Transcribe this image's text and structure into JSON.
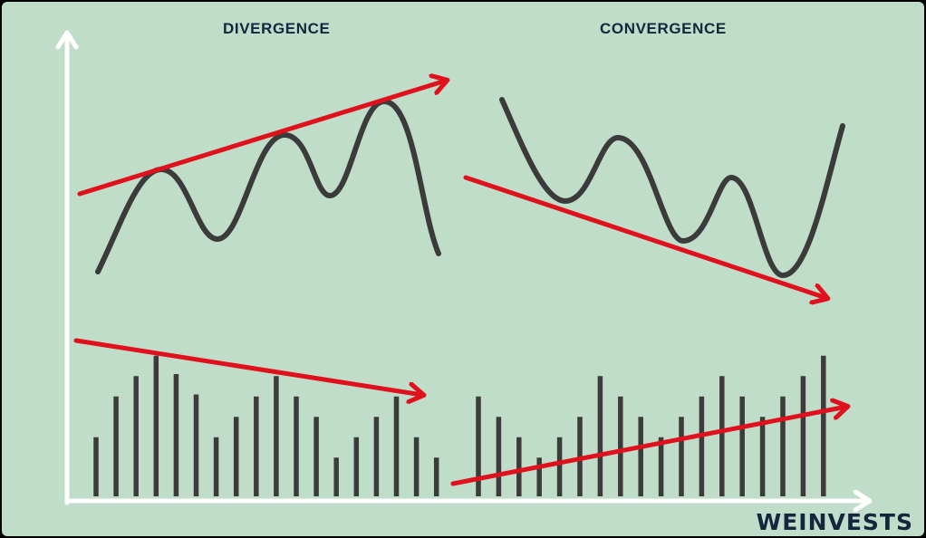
{
  "headings": {
    "divergence": "DIVERGENCE",
    "convergence": "CONVERGENCE"
  },
  "brand": "WEINVESTS",
  "colors": {
    "background": "#bfddc9",
    "axis": "#ffffff",
    "price_line": "#3b3b3b",
    "trend_arrow": "#e0101c",
    "volume_bar": "#3b3b3b",
    "text": "#13263d"
  },
  "panels": {
    "divergence": {
      "price_trend": "up",
      "volume_trend": "down",
      "volume_bars": [
        0.29,
        0.49,
        0.59,
        0.69,
        0.6,
        0.5,
        0.29,
        0.39,
        0.49,
        0.59,
        0.49,
        0.39,
        0.19,
        0.29,
        0.39,
        0.49,
        0.29,
        0.19
      ]
    },
    "convergence": {
      "price_trend": "down",
      "volume_trend": "up",
      "volume_bars": [
        0.49,
        0.39,
        0.29,
        0.19,
        0.29,
        0.39,
        0.59,
        0.49,
        0.39,
        0.29,
        0.39,
        0.49,
        0.59,
        0.49,
        0.39,
        0.49,
        0.59,
        0.69
      ]
    }
  }
}
